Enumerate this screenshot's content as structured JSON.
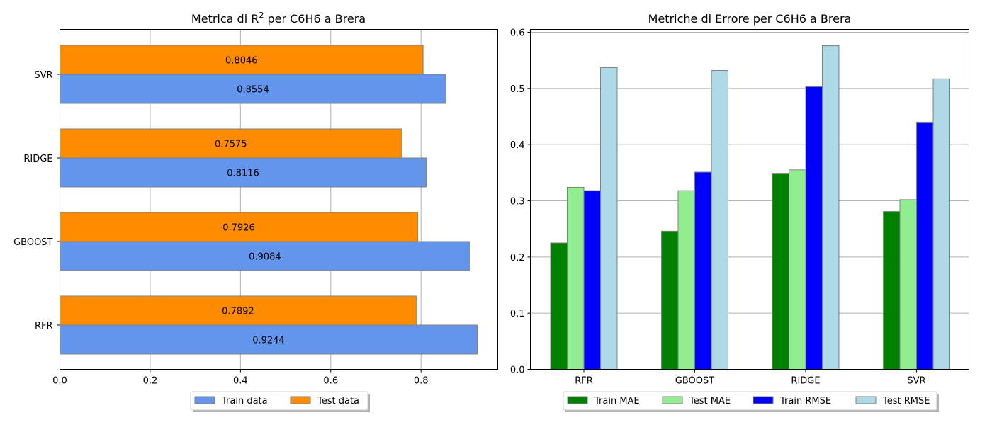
{
  "chart_data": [
    {
      "type": "bar",
      "orientation": "horizontal",
      "title": "Metrica di R² per C6H6 a Brera",
      "title_parts": {
        "pre": "Metrica di R",
        "sup": "2",
        "post": " per C6H6 a Brera"
      },
      "categories": [
        "RFR",
        "GBOOST",
        "RIDGE",
        "SVR"
      ],
      "series": [
        {
          "name": "Train data",
          "color": "#6495ed",
          "values": [
            0.9244,
            0.9084,
            0.8116,
            0.8554
          ],
          "labels": [
            "0.9244",
            "0.9084",
            "0.8116",
            "0.8554"
          ]
        },
        {
          "name": "Test data",
          "color": "#ff8c00",
          "values": [
            0.7892,
            0.7926,
            0.7575,
            0.8046
          ],
          "labels": [
            "0.7892",
            "0.7926",
            "0.7575",
            "0.8046"
          ]
        }
      ],
      "xlim": [
        0,
        0.97
      ],
      "xticks": [
        "0.0",
        "0.2",
        "0.4",
        "0.6",
        "0.8"
      ],
      "grid": "x",
      "legend": "bottom-center"
    },
    {
      "type": "bar",
      "title": "Metriche di Errore per C6H6 a Brera",
      "categories": [
        "RFR",
        "GBOOST",
        "RIDGE",
        "SVR"
      ],
      "series": [
        {
          "name": "Train MAE",
          "color": "#008000",
          "values": [
            0.225,
            0.246,
            0.349,
            0.281
          ]
        },
        {
          "name": "Test MAE",
          "color": "#90ee90",
          "values": [
            0.324,
            0.318,
            0.355,
            0.302
          ]
        },
        {
          "name": "Train RMSE",
          "color": "#0000ff",
          "values": [
            0.318,
            0.351,
            0.503,
            0.44
          ]
        },
        {
          "name": "Test RMSE",
          "color": "#add8e6",
          "values": [
            0.537,
            0.532,
            0.576,
            0.517
          ]
        }
      ],
      "ylim": [
        0,
        0.6
      ],
      "yticks": [
        "0.0",
        "0.1",
        "0.2",
        "0.3",
        "0.4",
        "0.5",
        "0.6"
      ],
      "grid": "y",
      "legend": "bottom-center"
    }
  ]
}
